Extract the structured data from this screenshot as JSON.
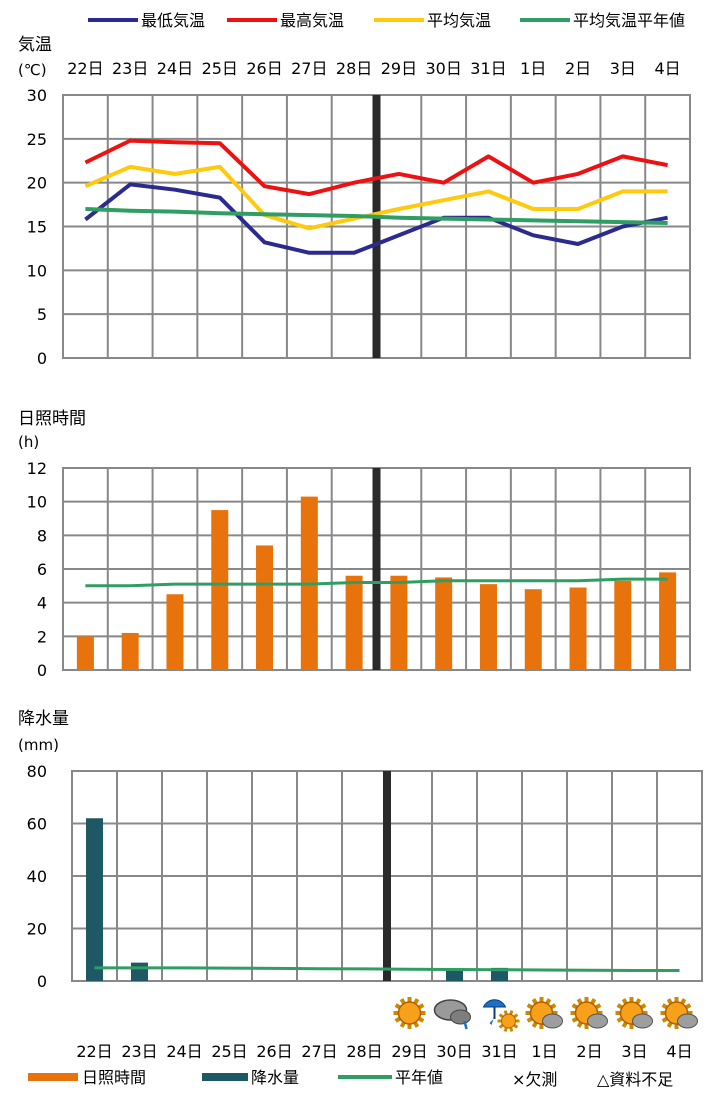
{
  "colors": {
    "min_temp": "#2B2B8F",
    "max_temp": "#EE1111",
    "avg_temp": "#FFC90E",
    "normal": "#2E9E63",
    "sunshine_bar": "#E8720C",
    "precip_bar": "#1E5864",
    "current_marker": "#2A2A2A",
    "grid": "#888888"
  },
  "temp_legend": {
    "min_label": "最低気温",
    "max_label": "最高気温",
    "avg_label": "平均気温",
    "normal_label": "平均気温平年値"
  },
  "bottom_legend": {
    "sunshine_label": "日照時間",
    "precip_label": "降水量",
    "normal_label": "平年値",
    "missing_note": "×欠測",
    "insufficient_note": "△資料不足"
  },
  "days": [
    "22日",
    "23日",
    "24日",
    "25日",
    "26日",
    "27日",
    "28日",
    "29日",
    "30日",
    "31日",
    "1日",
    "2日",
    "3日",
    "4日"
  ],
  "weather_icons": [
    "sunny-icon",
    "cloudy-rain-icon",
    "umbrella-then-sunny-icon",
    "sunny-cloudy-icon",
    "sunny-cloudy-icon",
    "sunny-cloudy-icon",
    "sunny-cloudy-icon"
  ],
  "chart_data": [
    {
      "type": "line",
      "title": "気温",
      "unit": "(℃)",
      "categories": [
        "22日",
        "23日",
        "24日",
        "25日",
        "26日",
        "27日",
        "28日",
        "29日",
        "30日",
        "31日",
        "1日",
        "2日",
        "3日",
        "4日"
      ],
      "ylim": [
        0,
        30
      ],
      "yticks": [
        "0",
        "5",
        "10",
        "15",
        "20",
        "25",
        "30"
      ],
      "current_day_index": 7,
      "series": [
        {
          "name": "最低気温",
          "values": [
            15.8,
            19.8,
            19.2,
            18.3,
            13.2,
            12.0,
            12.0,
            14.0,
            16.0,
            16.0,
            14.0,
            13.0,
            15.0,
            16.0
          ]
        },
        {
          "name": "最高気温",
          "values": [
            22.3,
            24.8,
            24.6,
            24.5,
            19.6,
            18.7,
            20.0,
            21.0,
            20.0,
            23.0,
            20.0,
            21.0,
            23.0,
            22.0
          ]
        },
        {
          "name": "平均気温",
          "values": [
            19.6,
            21.8,
            21.0,
            21.8,
            16.3,
            14.8,
            15.9,
            17.0,
            18.0,
            19.0,
            17.0,
            17.0,
            19.0,
            19.0
          ]
        },
        {
          "name": "平均気温平年値",
          "values": [
            17.0,
            16.8,
            16.7,
            16.5,
            16.4,
            16.3,
            16.2,
            16.0,
            15.9,
            15.8,
            15.7,
            15.6,
            15.5,
            15.4
          ]
        }
      ],
      "grid": true
    },
    {
      "type": "bar",
      "title": "日照時間",
      "unit": "(h)",
      "categories": [
        "22日",
        "23日",
        "24日",
        "25日",
        "26日",
        "27日",
        "28日",
        "29日",
        "30日",
        "31日",
        "1日",
        "2日",
        "3日",
        "4日"
      ],
      "ylim": [
        0,
        12
      ],
      "yticks": [
        "0",
        "2",
        "4",
        "6",
        "8",
        "10",
        "12"
      ],
      "current_day_index": 7,
      "series": [
        {
          "name": "日照時間",
          "values": [
            2.0,
            2.2,
            4.5,
            9.5,
            7.4,
            10.3,
            5.6,
            5.6,
            5.5,
            5.1,
            4.8,
            4.9,
            5.3,
            5.8
          ]
        },
        {
          "name": "平年値",
          "values": [
            5.0,
            5.0,
            5.1,
            5.1,
            5.1,
            5.1,
            5.2,
            5.2,
            5.3,
            5.3,
            5.3,
            5.3,
            5.4,
            5.4
          ]
        }
      ],
      "grid": true
    },
    {
      "type": "bar",
      "title": "降水量",
      "unit": "(mm)",
      "categories": [
        "22日",
        "23日",
        "24日",
        "25日",
        "26日",
        "27日",
        "28日",
        "29日",
        "30日",
        "31日",
        "1日",
        "2日",
        "3日",
        "4日"
      ],
      "ylim": [
        0,
        80
      ],
      "yticks": [
        "0",
        "20",
        "40",
        "60",
        "80"
      ],
      "current_day_index": 7,
      "series": [
        {
          "name": "降水量",
          "values": [
            62,
            7,
            0,
            0,
            0,
            0,
            0,
            0,
            4,
            5,
            0,
            0,
            0,
            0
          ]
        },
        {
          "name": "平年値",
          "values": [
            5.0,
            5.0,
            5.0,
            4.9,
            4.8,
            4.7,
            4.6,
            4.5,
            4.4,
            4.3,
            4.2,
            4.1,
            4.0,
            4.0
          ]
        }
      ],
      "grid": true
    }
  ]
}
